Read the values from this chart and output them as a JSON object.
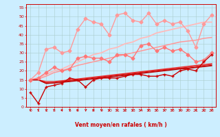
{
  "xlabel": "Vent moyen/en rafales ( km/h )",
  "bg_color": "#cceeff",
  "grid_color": "#aacccc",
  "xlim": [
    -0.5,
    23.5
  ],
  "ylim": [
    0,
    57
  ],
  "yticks": [
    0,
    5,
    10,
    15,
    20,
    25,
    30,
    35,
    40,
    45,
    50,
    55
  ],
  "xticks": [
    0,
    1,
    2,
    3,
    4,
    5,
    6,
    7,
    8,
    9,
    10,
    11,
    12,
    13,
    14,
    15,
    16,
    17,
    18,
    19,
    20,
    21,
    22,
    23
  ],
  "x": [
    0,
    1,
    2,
    3,
    4,
    5,
    6,
    7,
    8,
    9,
    10,
    11,
    12,
    13,
    14,
    15,
    16,
    17,
    18,
    19,
    20,
    21,
    22,
    23
  ],
  "series": [
    {
      "y": [
        15,
        19,
        32,
        33,
        30,
        31,
        43,
        49,
        47,
        46,
        40,
        51,
        52,
        48,
        47,
        52,
        46,
        48,
        46,
        47,
        42,
        33,
        46,
        51
      ],
      "color": "#ff9999",
      "lw": 1.0,
      "marker": "D",
      "ms": 2.5
    },
    {
      "y": [
        15,
        16,
        19,
        22,
        20,
        21,
        27,
        28,
        27,
        27,
        25,
        29,
        29,
        27,
        34,
        35,
        31,
        33,
        31,
        32,
        29,
        25,
        26,
        30
      ],
      "color": "#ff7777",
      "lw": 1.0,
      "marker": "D",
      "ms": 2.5
    },
    {
      "y": [
        15,
        16,
        18,
        20,
        21,
        23,
        25,
        27,
        29,
        30,
        32,
        33,
        35,
        36,
        38,
        39,
        41,
        42,
        43,
        44,
        45,
        46,
        47,
        47
      ],
      "color": "#ffbbbb",
      "lw": 1.3,
      "marker": null,
      "ms": 0
    },
    {
      "y": [
        15,
        15.5,
        17,
        19,
        20,
        21.5,
        23,
        24,
        25,
        26,
        27,
        28,
        29,
        30,
        31,
        32,
        33,
        34,
        35,
        36,
        36.5,
        37,
        38,
        38.5
      ],
      "color": "#ff9999",
      "lw": 1.1,
      "marker": null,
      "ms": 0
    },
    {
      "y": [
        8,
        2,
        11,
        12,
        13,
        16,
        15,
        11,
        15,
        16,
        16,
        16,
        17,
        18,
        18,
        17,
        17,
        18,
        17,
        20,
        21,
        20,
        25,
        29
      ],
      "color": "#cc0000",
      "lw": 1.0,
      "marker": "+",
      "ms": 3.5
    },
    {
      "y": [
        15,
        15,
        14,
        14,
        14.5,
        15,
        15.5,
        16,
        16.5,
        17,
        17.5,
        18,
        18.5,
        19,
        19.5,
        20,
        20.5,
        21,
        21.5,
        22,
        22.5,
        23,
        23.5,
        24
      ],
      "color": "#ee3333",
      "lw": 1.0,
      "marker": null,
      "ms": 0
    },
    {
      "y": [
        15,
        15,
        13.5,
        13.8,
        14.2,
        14.7,
        15.2,
        15.7,
        16.2,
        16.7,
        17.2,
        17.7,
        18.2,
        18.7,
        19.2,
        19.7,
        20.2,
        20.7,
        21.0,
        21.5,
        22,
        22.5,
        23,
        23.5
      ],
      "color": "#dd2222",
      "lw": 0.9,
      "marker": null,
      "ms": 0
    },
    {
      "y": [
        15,
        15,
        13,
        13.3,
        13.8,
        14.3,
        14.8,
        15.3,
        15.8,
        16.3,
        16.8,
        17.3,
        17.8,
        18.3,
        18.8,
        19.3,
        19.8,
        20.3,
        20.8,
        21.3,
        21.5,
        22,
        22.5,
        23
      ],
      "color": "#cc1111",
      "lw": 0.9,
      "marker": null,
      "ms": 0
    },
    {
      "y": [
        15,
        15,
        13,
        13.2,
        13.6,
        14.0,
        14.5,
        15.0,
        15.5,
        16.0,
        16.5,
        17.0,
        17.5,
        18.0,
        18.5,
        19.0,
        19.5,
        20.0,
        20.5,
        21.0,
        21.3,
        21.8,
        22.3,
        22.8
      ],
      "color": "#bb0000",
      "lw": 0.9,
      "marker": null,
      "ms": 0
    }
  ]
}
